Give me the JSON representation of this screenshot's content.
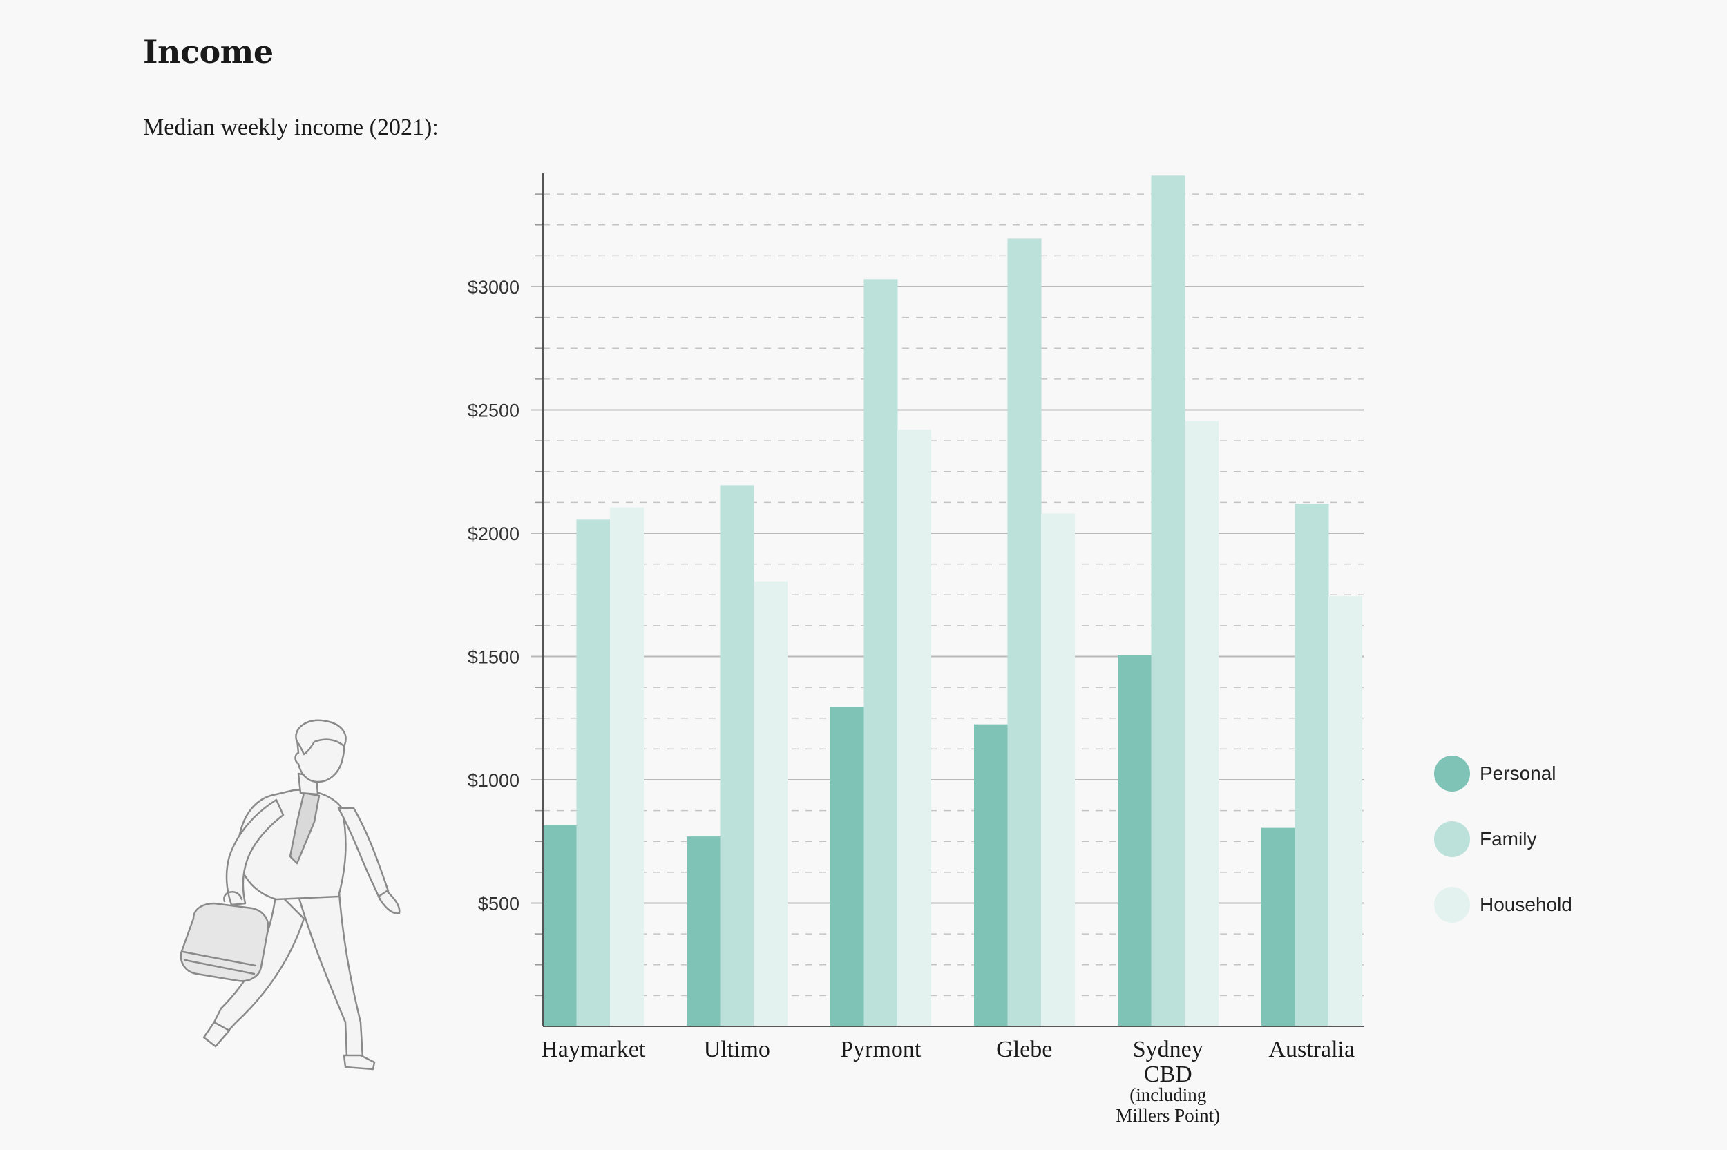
{
  "header": {
    "title": "Income",
    "subtitle": "Median weekly income (2021):"
  },
  "colors": {
    "personal": "#7fc2b6",
    "family": "#bce1da",
    "household": "#e4f2ef",
    "grid": "#b9b9b9",
    "axis": "#555555"
  },
  "chart_data": {
    "type": "bar",
    "title": "Median weekly income (2021):",
    "xlabel": "",
    "ylabel": "",
    "ylim": [
      0,
      3450
    ],
    "yticks": [
      500,
      1000,
      1500,
      2000,
      2500,
      3000
    ],
    "ytick_labels": [
      "$500",
      "$1000",
      "$1500",
      "$2000",
      "$2500",
      "$3000"
    ],
    "categories": [
      [
        "Haymarket"
      ],
      [
        "Ultimo"
      ],
      [
        "Pyrmont"
      ],
      [
        "Glebe"
      ],
      [
        "Sydney",
        "CBD"
      ],
      [
        "Australia"
      ]
    ],
    "category_notes": [
      "",
      "",
      "",
      "",
      "(including Millers Point)",
      ""
    ],
    "series": [
      {
        "name": "Personal",
        "color_key": "personal",
        "values": [
          815,
          770,
          1295,
          1225,
          1505,
          805
        ]
      },
      {
        "name": "Family",
        "color_key": "family",
        "values": [
          2055,
          2195,
          3030,
          3195,
          3450,
          2120
        ]
      },
      {
        "name": "Household",
        "color_key": "household",
        "values": [
          2105,
          1805,
          2420,
          2080,
          2455,
          1745
        ]
      }
    ],
    "legend_position": "right"
  }
}
